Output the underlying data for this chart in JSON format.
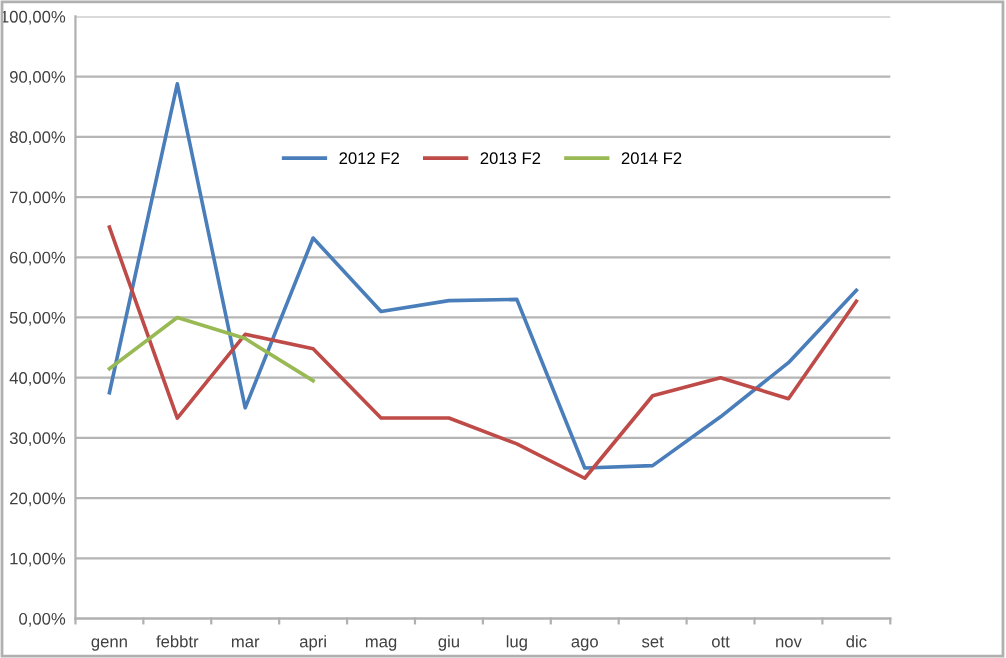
{
  "chart_data": {
    "type": "line",
    "categories": [
      "genn",
      "febbtr",
      "mar",
      "apri",
      "mag",
      "giu",
      "lug",
      "ago",
      "set",
      "ott",
      "nov",
      "dic"
    ],
    "series": [
      {
        "name": "2012 F2",
        "color": "#4a7ebb",
        "values": [
          37.5,
          88.8,
          35,
          63.2,
          51,
          52.8,
          53,
          25,
          25.4,
          33.5,
          42.5,
          54.5
        ]
      },
      {
        "name": "2013 F2",
        "color": "#be4b48",
        "values": [
          65,
          33.3,
          47.2,
          44.8,
          33.3,
          33.3,
          29,
          23.3,
          37,
          40,
          36.5,
          52.7
        ]
      },
      {
        "name": "2014 F2",
        "color": "#98b954",
        "values": [
          41.5,
          50,
          46.5,
          39.5,
          null,
          null,
          null,
          null,
          null,
          null,
          null,
          null
        ]
      }
    ],
    "ylim": [
      0,
      100
    ],
    "yticks": [
      {
        "value": 0,
        "label": "0,00%"
      },
      {
        "value": 10,
        "label": "10,00%"
      },
      {
        "value": 20,
        "label": "20,00%"
      },
      {
        "value": 30,
        "label": "30,00%"
      },
      {
        "value": 40,
        "label": "40,00%"
      },
      {
        "value": 50,
        "label": "50,00%"
      },
      {
        "value": 60,
        "label": "60,00%"
      },
      {
        "value": 70,
        "label": "70,00%"
      },
      {
        "value": 80,
        "label": "80,00%"
      },
      {
        "value": 90,
        "label": "90,00%"
      },
      {
        "value": 100,
        "label": "100,00%"
      }
    ],
    "grid": "y",
    "legend": "top",
    "marker": "none",
    "line_style": "solid"
  }
}
